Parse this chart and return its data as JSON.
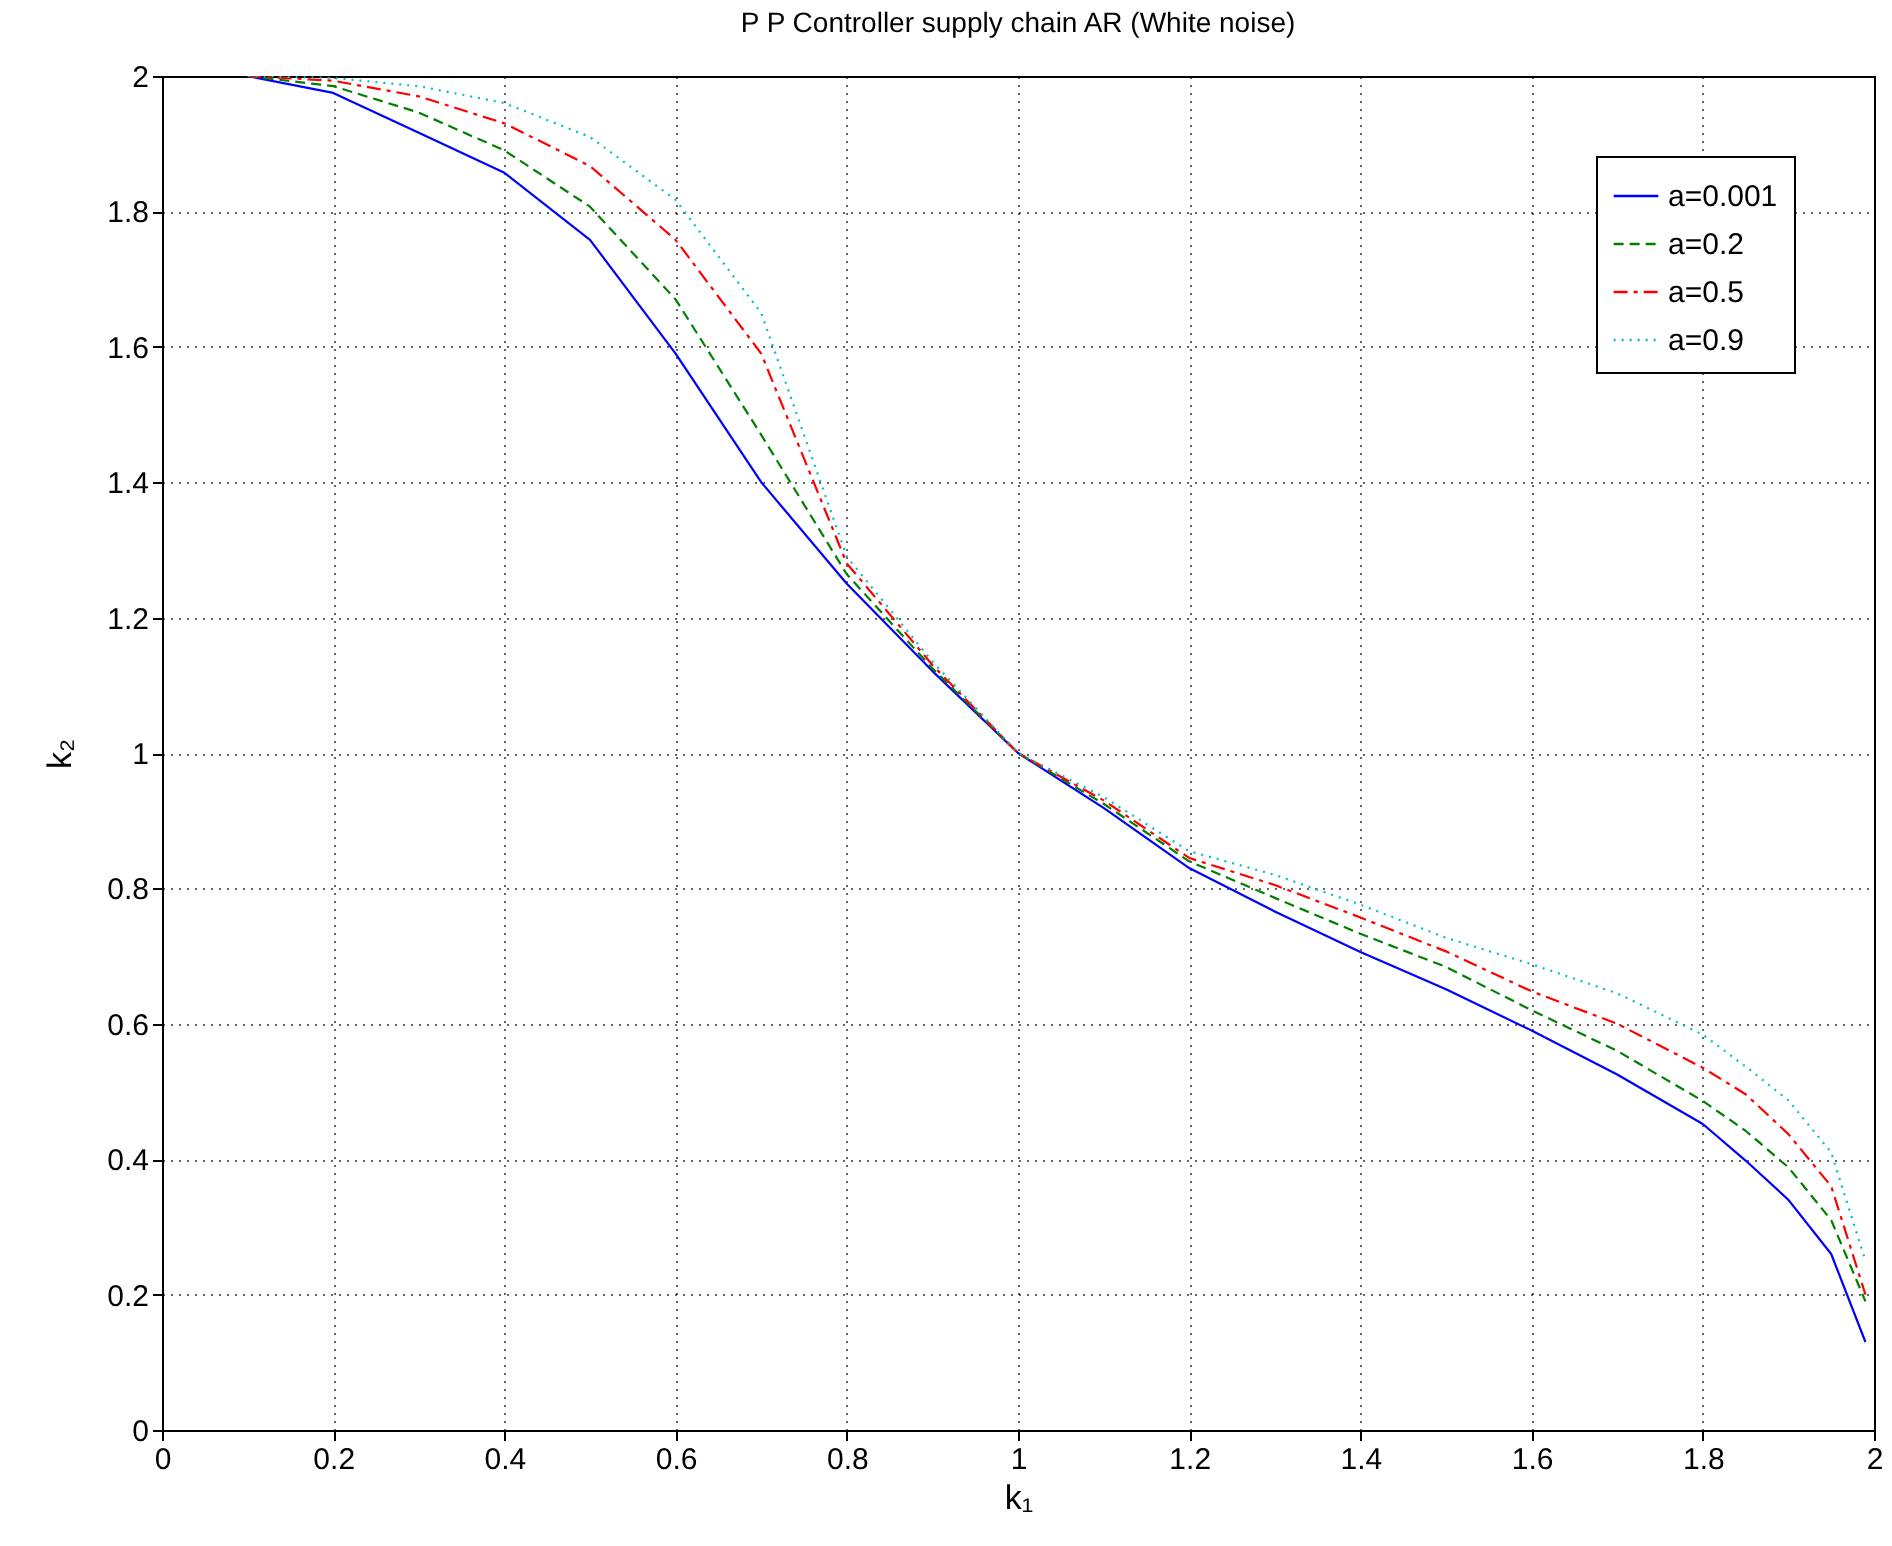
{
  "chart_data": {
    "type": "line",
    "title": "P P Controller supply chain AR (White noise)",
    "xlabel": "k₁",
    "ylabel": "k₂",
    "x": [
      0.1,
      0.2,
      0.3,
      0.4,
      0.5,
      0.6,
      0.7,
      0.8,
      0.9,
      1.0,
      1.1,
      1.2,
      1.3,
      1.4,
      1.5,
      1.6,
      1.7,
      1.8,
      1.85,
      1.9,
      1.95,
      1.99
    ],
    "series": [
      {
        "name": "a=0.001",
        "color": "#0000ff",
        "line_style": "solid",
        "values": [
          2.0,
          1.975,
          1.916,
          1.857,
          1.758,
          1.59,
          1.4,
          1.25,
          1.121,
          1.0,
          0.919,
          0.83,
          0.766,
          0.706,
          0.651,
          0.59,
          0.525,
          0.452,
          0.398,
          0.34,
          0.26,
          0.13
        ]
      },
      {
        "name": "a=0.2",
        "color": "#008000",
        "line_style": "dashed",
        "values": [
          2.0,
          1.985,
          1.946,
          1.89,
          1.807,
          1.67,
          1.47,
          1.264,
          1.125,
          1.0,
          0.925,
          0.84,
          0.786,
          0.733,
          0.684,
          0.62,
          0.56,
          0.486,
          0.442,
          0.388,
          0.31,
          0.19
        ]
      },
      {
        "name": "a=0.5",
        "color": "#ff0000",
        "line_style": "dashdot",
        "values": [
          2.0,
          1.993,
          1.97,
          1.93,
          1.867,
          1.758,
          1.59,
          1.28,
          1.13,
          1.0,
          0.93,
          0.845,
          0.805,
          0.757,
          0.707,
          0.648,
          0.6,
          0.535,
          0.496,
          0.437,
          0.36,
          0.2
        ]
      },
      {
        "name": "a=0.9",
        "color": "#00bfbf",
        "line_style": "dotted",
        "values": [
          2.0,
          1.997,
          1.985,
          1.96,
          1.91,
          1.817,
          1.65,
          1.29,
          1.135,
          1.0,
          0.935,
          0.855,
          0.82,
          0.776,
          0.727,
          0.688,
          0.645,
          0.584,
          0.537,
          0.487,
          0.41,
          0.25
        ]
      }
    ],
    "xlim": [
      0,
      2
    ],
    "xticks": [
      0,
      0.2,
      0.4,
      0.6,
      0.8,
      1,
      1.2,
      1.4,
      1.6,
      1.8,
      2
    ],
    "ylim": [
      0,
      2
    ],
    "yticks": [
      0,
      0.2,
      0.4,
      0.6,
      0.8,
      1,
      1.2,
      1.4,
      1.6,
      1.8,
      2
    ],
    "grid": true,
    "legend": "top right"
  }
}
